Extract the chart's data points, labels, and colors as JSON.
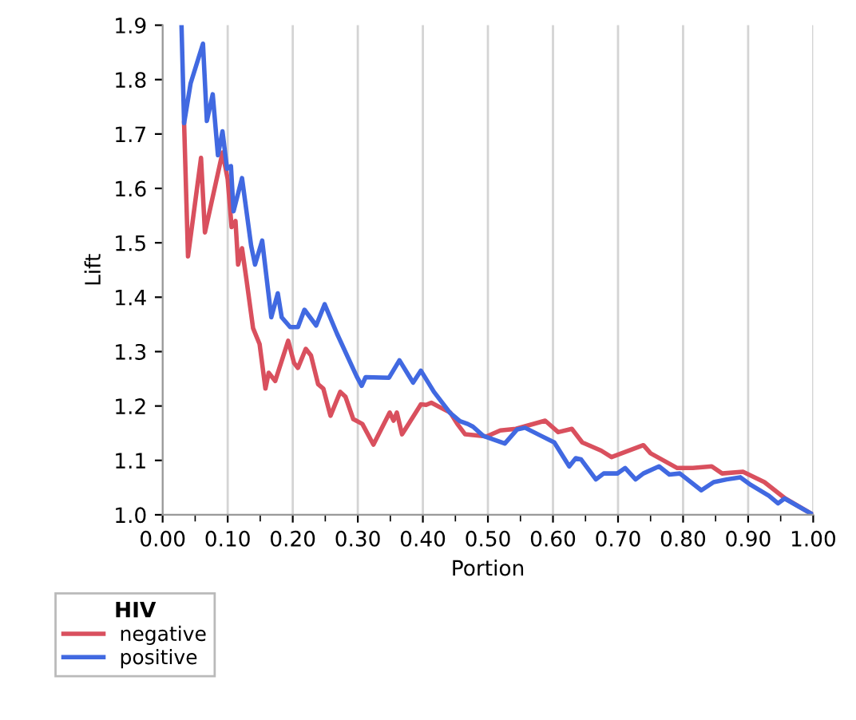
{
  "chart_data": {
    "type": "line",
    "xlabel": "Portion",
    "ylabel": "Lift",
    "legend_title": "HIV",
    "legend": "bottom left",
    "grid": "x",
    "xlim": [
      0,
      1
    ],
    "ylim": [
      1.0,
      1.9
    ],
    "xticks": [
      {
        "value": 0,
        "label": "0.00"
      },
      {
        "value": 0.1,
        "label": "0.10"
      },
      {
        "value": 0.2,
        "label": "0.20"
      },
      {
        "value": 0.3,
        "label": "0.30"
      },
      {
        "value": 0.4,
        "label": "0.40"
      },
      {
        "value": 0.5,
        "label": "0.50"
      },
      {
        "value": 0.6,
        "label": "0.60"
      },
      {
        "value": 0.7,
        "label": "0.70"
      },
      {
        "value": 0.8,
        "label": "0.80"
      },
      {
        "value": 0.9,
        "label": "0.90"
      },
      {
        "value": 1,
        "label": "1.00"
      }
    ],
    "yticks": [
      {
        "value": 1,
        "label": "1.0"
      },
      1.1,
      1.2,
      1.3,
      1.4,
      1.5,
      1.6,
      1.7,
      1.8,
      1.9
    ],
    "series": [
      {
        "name": "negative",
        "color": "#d9505e",
        "x": [
          0.033,
          0.039,
          0.059,
          0.065,
          0.092,
          0.1,
          0.106,
          0.112,
          0.116,
          0.122,
          0.129,
          0.139,
          0.149,
          0.158,
          0.163,
          0.173,
          0.193,
          0.202,
          0.208,
          0.22,
          0.228,
          0.239,
          0.247,
          0.258,
          0.273,
          0.281,
          0.293,
          0.307,
          0.324,
          0.349,
          0.355,
          0.36,
          0.368,
          0.397,
          0.405,
          0.413,
          0.429,
          0.442,
          0.453,
          0.465,
          0.498,
          0.519,
          0.543,
          0.588,
          0.608,
          0.629,
          0.645,
          0.674,
          0.69,
          0.739,
          0.75,
          0.791,
          0.815,
          0.844,
          0.86,
          0.892,
          0.925,
          0.957,
          1.0
        ],
        "values": [
          1.72,
          1.475,
          1.656,
          1.519,
          1.666,
          1.617,
          1.529,
          1.54,
          1.46,
          1.49,
          1.431,
          1.343,
          1.314,
          1.232,
          1.261,
          1.246,
          1.32,
          1.279,
          1.27,
          1.305,
          1.293,
          1.24,
          1.232,
          1.182,
          1.226,
          1.217,
          1.176,
          1.167,
          1.129,
          1.188,
          1.173,
          1.188,
          1.148,
          1.203,
          1.202,
          1.206,
          1.196,
          1.188,
          1.167,
          1.148,
          1.144,
          1.155,
          1.158,
          1.173,
          1.152,
          1.158,
          1.133,
          1.118,
          1.106,
          1.128,
          1.113,
          1.086,
          1.086,
          1.089,
          1.076,
          1.079,
          1.06,
          1.03,
          1.0
        ]
      },
      {
        "name": "positive",
        "color": "#4169e1",
        "x": [
          0.029,
          0.033,
          0.043,
          0.062,
          0.068,
          0.077,
          0.085,
          0.092,
          0.099,
          0.105,
          0.109,
          0.122,
          0.136,
          0.142,
          0.153,
          0.167,
          0.177,
          0.183,
          0.196,
          0.208,
          0.218,
          0.236,
          0.249,
          0.268,
          0.298,
          0.306,
          0.312,
          0.348,
          0.364,
          0.385,
          0.397,
          0.417,
          0.442,
          0.457,
          0.469,
          0.477,
          0.493,
          0.526,
          0.545,
          0.557,
          0.582,
          0.602,
          0.625,
          0.635,
          0.643,
          0.666,
          0.678,
          0.699,
          0.711,
          0.727,
          0.739,
          0.763,
          0.779,
          0.795,
          0.828,
          0.847,
          0.867,
          0.888,
          0.904,
          0.932,
          0.946,
          0.956,
          1.0
        ],
        "values": [
          1.9,
          1.72,
          1.793,
          1.866,
          1.724,
          1.773,
          1.661,
          1.705,
          1.636,
          1.641,
          1.558,
          1.619,
          1.495,
          1.46,
          1.504,
          1.363,
          1.407,
          1.363,
          1.345,
          1.345,
          1.377,
          1.348,
          1.387,
          1.333,
          1.255,
          1.237,
          1.253,
          1.252,
          1.284,
          1.243,
          1.265,
          1.226,
          1.187,
          1.172,
          1.167,
          1.162,
          1.145,
          1.131,
          1.157,
          1.16,
          1.145,
          1.133,
          1.089,
          1.104,
          1.102,
          1.065,
          1.076,
          1.076,
          1.086,
          1.065,
          1.076,
          1.089,
          1.074,
          1.076,
          1.045,
          1.06,
          1.065,
          1.069,
          1.055,
          1.035,
          1.021,
          1.03,
          1.0
        ]
      }
    ]
  }
}
